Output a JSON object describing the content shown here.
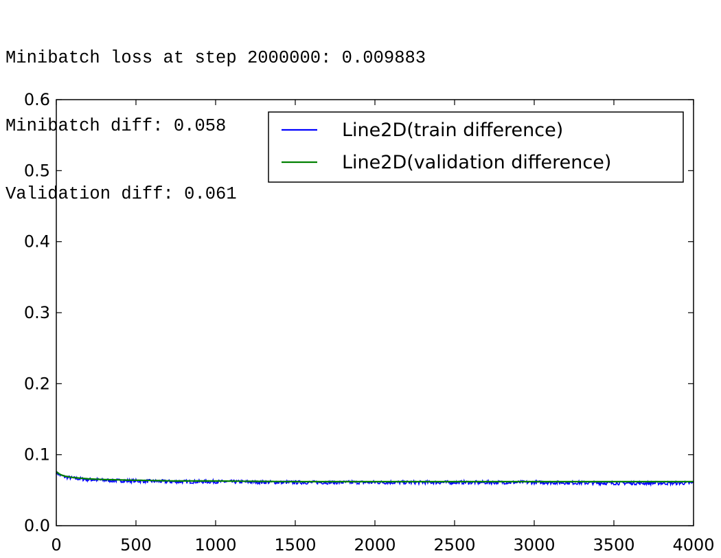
{
  "console": {
    "lines": [
      "Minibatch loss at step 2000000: 0.009883",
      "Minibatch diff: 0.058",
      "Validation diff: 0.061"
    ]
  },
  "chart_data": {
    "type": "line",
    "title": "",
    "xlabel": "",
    "ylabel": "",
    "xlim": [
      0,
      4000
    ],
    "ylim": [
      0.0,
      0.6
    ],
    "xticks": [
      0,
      500,
      1000,
      1500,
      2000,
      2500,
      3000,
      3500,
      4000
    ],
    "yticks": [
      0.0,
      0.1,
      0.2,
      0.3,
      0.4,
      0.5,
      0.6
    ],
    "ytick_labels": [
      "0.0",
      "0.1",
      "0.2",
      "0.3",
      "0.4",
      "0.5",
      "0.6"
    ],
    "grid": false,
    "legend_position": "top-right",
    "series": [
      {
        "name": "Line2D(train difference)",
        "color": "#0000ff",
        "noisy": true,
        "x": [
          0,
          25,
          50,
          100,
          200,
          300,
          500,
          750,
          1000,
          1500,
          2000,
          2500,
          3000,
          3500,
          4000
        ],
        "y": [
          0.075,
          0.071,
          0.069,
          0.067,
          0.065,
          0.064,
          0.063,
          0.062,
          0.062,
          0.061,
          0.061,
          0.061,
          0.061,
          0.06,
          0.06
        ]
      },
      {
        "name": "Line2D(validation difference)",
        "color": "#008000",
        "noisy": false,
        "x": [
          0,
          25,
          50,
          100,
          200,
          300,
          500,
          750,
          1000,
          1500,
          2000,
          2500,
          3000,
          3500,
          4000
        ],
        "y": [
          0.076,
          0.072,
          0.07,
          0.068,
          0.066,
          0.065,
          0.064,
          0.063,
          0.063,
          0.062,
          0.062,
          0.062,
          0.062,
          0.062,
          0.062
        ]
      }
    ]
  }
}
